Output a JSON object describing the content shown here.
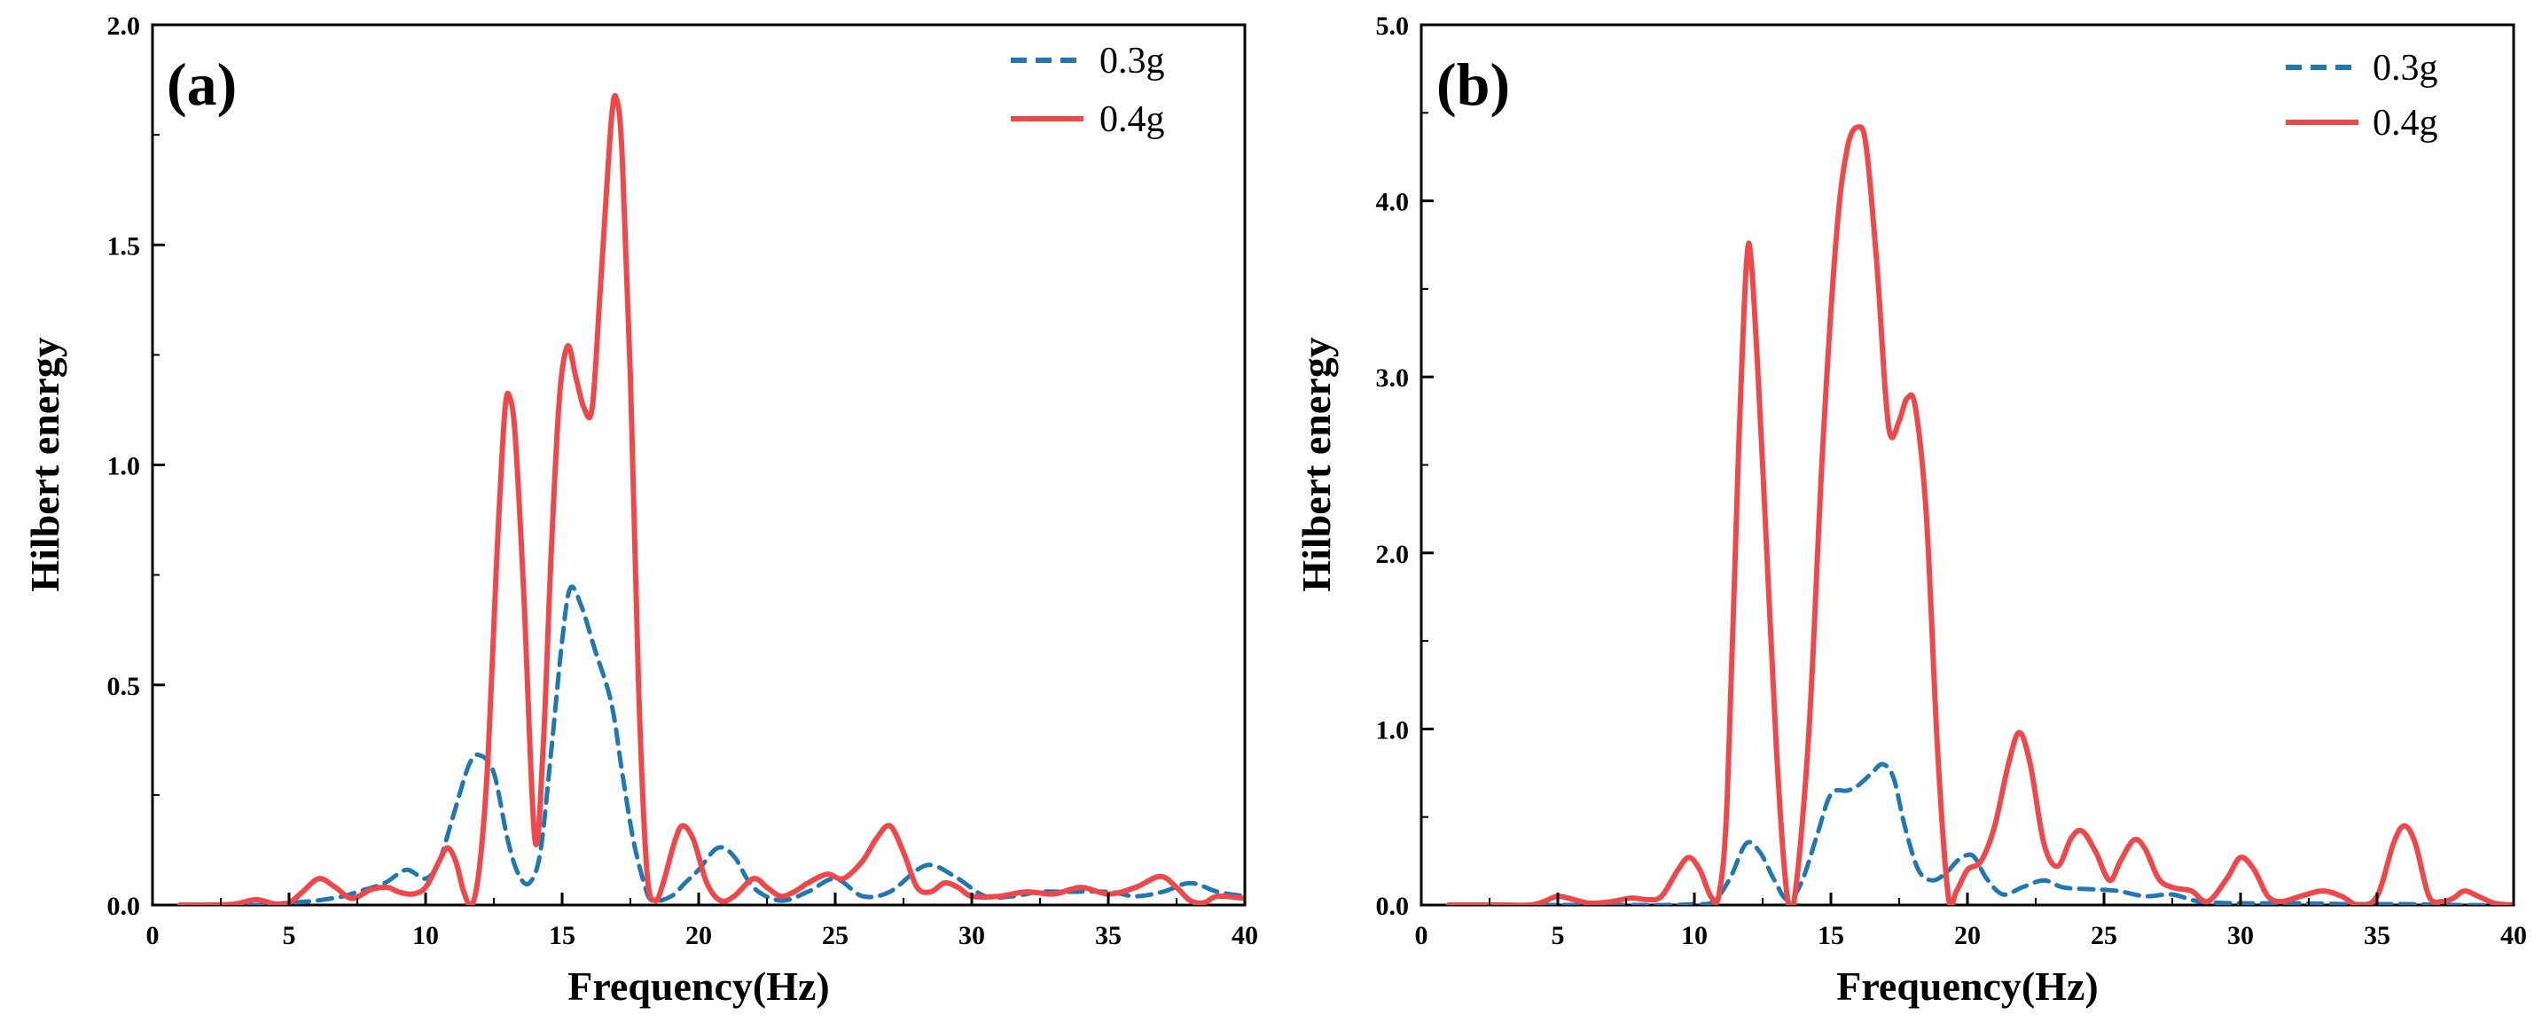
{
  "colors": {
    "series_0_3g": "#1f77b4",
    "series_0_4g": "#f0484a",
    "axis": "#000000"
  },
  "chart_data": [
    {
      "type": "line",
      "panel_label": "(a)",
      "xlabel": "Frequency(Hz)",
      "ylabel": "Hilbert energy",
      "xlim": [
        0,
        40
      ],
      "ylim": [
        0,
        2.0
      ],
      "xticks": [
        0,
        5,
        10,
        15,
        20,
        25,
        30,
        35,
        40
      ],
      "xtick_labels": [
        "0",
        "5",
        "10",
        "15",
        "20",
        "25",
        "30",
        "35",
        "40"
      ],
      "yticks": [
        0,
        0.5,
        1.0,
        1.5,
        2.0
      ],
      "ytick_labels": [
        "0.0",
        "0.5",
        "1.0",
        "1.5",
        "2.0"
      ],
      "legend_position": "top-right",
      "series": [
        {
          "name": "0.3g",
          "style": "dashed",
          "color": "#1f77b4",
          "points": [
            [
              1,
              0
            ],
            [
              2,
              0
            ],
            [
              3,
              0
            ],
            [
              4,
              0
            ],
            [
              5,
              0.005
            ],
            [
              6,
              0.01
            ],
            [
              7,
              0.02
            ],
            [
              7.5,
              0.03
            ],
            [
              8.5,
              0.05
            ],
            [
              9.3,
              0.08
            ],
            [
              10,
              0.06
            ],
            [
              10.5,
              0.1
            ],
            [
              11,
              0.2
            ],
            [
              11.6,
              0.32
            ],
            [
              12,
              0.34
            ],
            [
              12.5,
              0.3
            ],
            [
              13,
              0.15
            ],
            [
              13.4,
              0.07
            ],
            [
              13.8,
              0.05
            ],
            [
              14.2,
              0.12
            ],
            [
              14.6,
              0.35
            ],
            [
              15,
              0.6
            ],
            [
              15.3,
              0.72
            ],
            [
              15.7,
              0.68
            ],
            [
              16.2,
              0.58
            ],
            [
              16.8,
              0.46
            ],
            [
              17.2,
              0.3
            ],
            [
              17.6,
              0.15
            ],
            [
              18,
              0.05
            ],
            [
              18.3,
              0.01
            ],
            [
              19,
              0.02
            ],
            [
              19.5,
              0.05
            ],
            [
              20,
              0.08
            ],
            [
              20.7,
              0.13
            ],
            [
              21.3,
              0.11
            ],
            [
              22,
              0.04
            ],
            [
              23,
              0.01
            ],
            [
              24,
              0.03
            ],
            [
              25,
              0.06
            ],
            [
              26,
              0.02
            ],
            [
              27,
              0.03
            ],
            [
              28,
              0.08
            ],
            [
              28.6,
              0.09
            ],
            [
              29.5,
              0.06
            ],
            [
              30.5,
              0.02
            ],
            [
              31.5,
              0.02
            ],
            [
              32.5,
              0.03
            ],
            [
              33.5,
              0.03
            ],
            [
              35,
              0.03
            ],
            [
              36,
              0.02
            ],
            [
              37,
              0.03
            ],
            [
              38,
              0.05
            ],
            [
              39,
              0.03
            ],
            [
              40,
              0.02
            ]
          ]
        },
        {
          "name": "0.4g",
          "style": "solid",
          "color": "#f0484a",
          "points": [
            [
              1,
              0
            ],
            [
              2,
              0
            ],
            [
              3,
              0.002
            ],
            [
              3.8,
              0.012
            ],
            [
              4.5,
              0.002
            ],
            [
              5,
              0.005
            ],
            [
              5.5,
              0.03
            ],
            [
              6.1,
              0.06
            ],
            [
              6.7,
              0.04
            ],
            [
              7.3,
              0.015
            ],
            [
              8,
              0.035
            ],
            [
              8.6,
              0.04
            ],
            [
              9,
              0.03
            ],
            [
              9.5,
              0.025
            ],
            [
              10,
              0.04
            ],
            [
              10.5,
              0.1
            ],
            [
              10.8,
              0.13
            ],
            [
              11.1,
              0.1
            ],
            [
              11.4,
              0.03
            ],
            [
              11.7,
              0
            ],
            [
              12,
              0.1
            ],
            [
              12.3,
              0.35
            ],
            [
              12.6,
              0.78
            ],
            [
              12.9,
              1.12
            ],
            [
              13.1,
              1.15
            ],
            [
              13.3,
              1.05
            ],
            [
              13.6,
              0.7
            ],
            [
              14,
              0.15
            ],
            [
              14.3,
              0.35
            ],
            [
              14.6,
              0.8
            ],
            [
              14.9,
              1.15
            ],
            [
              15.2,
              1.27
            ],
            [
              15.5,
              1.2
            ],
            [
              15.8,
              1.13
            ],
            [
              16.1,
              1.13
            ],
            [
              16.4,
              1.4
            ],
            [
              16.8,
              1.78
            ],
            [
              17,
              1.83
            ],
            [
              17.2,
              1.7
            ],
            [
              17.5,
              1.2
            ],
            [
              17.8,
              0.5
            ],
            [
              18.1,
              0.08
            ],
            [
              18.4,
              0.01
            ],
            [
              18.7,
              0.05
            ],
            [
              19.1,
              0.14
            ],
            [
              19.4,
              0.18
            ],
            [
              19.8,
              0.15
            ],
            [
              20.3,
              0.05
            ],
            [
              20.8,
              0.01
            ],
            [
              21.3,
              0.02
            ],
            [
              22,
              0.06
            ],
            [
              22.5,
              0.04
            ],
            [
              23,
              0.02
            ],
            [
              23.5,
              0.03
            ],
            [
              24,
              0.05
            ],
            [
              24.7,
              0.07
            ],
            [
              25.3,
              0.06
            ],
            [
              26,
              0.1
            ],
            [
              26.5,
              0.15
            ],
            [
              27,
              0.18
            ],
            [
              27.5,
              0.12
            ],
            [
              28,
              0.04
            ],
            [
              28.5,
              0.03
            ],
            [
              29,
              0.05
            ],
            [
              29.5,
              0.04
            ],
            [
              30,
              0.02
            ],
            [
              31,
              0.02
            ],
            [
              32,
              0.03
            ],
            [
              33,
              0.025
            ],
            [
              34,
              0.04
            ],
            [
              35,
              0.025
            ],
            [
              36,
              0.04
            ],
            [
              36.9,
              0.065
            ],
            [
              37.5,
              0.04
            ],
            [
              38,
              0.01
            ],
            [
              38.5,
              0.005
            ],
            [
              39,
              0.02
            ],
            [
              40,
              0.015
            ]
          ]
        }
      ]
    },
    {
      "type": "line",
      "panel_label": "(b)",
      "xlabel": "Frequency(Hz)",
      "ylabel": "Hilbert energy",
      "xlim": [
        0,
        40
      ],
      "ylim": [
        0,
        5.0
      ],
      "xticks": [
        0,
        5,
        10,
        15,
        20,
        25,
        30,
        35,
        40
      ],
      "xtick_labels": [
        "0",
        "5",
        "10",
        "15",
        "20",
        "25",
        "30",
        "35",
        "40"
      ],
      "yticks": [
        0,
        1.0,
        2.0,
        3.0,
        4.0,
        5.0
      ],
      "ytick_labels": [
        "0.0",
        "1.0",
        "2.0",
        "3.0",
        "4.0",
        "5.0"
      ],
      "legend_position": "top-right",
      "series": [
        {
          "name": "0.3g",
          "style": "dashed",
          "color": "#1f77b4",
          "points": [
            [
              1,
              0
            ],
            [
              3,
              0
            ],
            [
              5,
              0
            ],
            [
              7,
              0
            ],
            [
              9,
              0
            ],
            [
              10,
              0.005
            ],
            [
              10.7,
              0.02
            ],
            [
              11.3,
              0.15
            ],
            [
              11.9,
              0.35
            ],
            [
              12.4,
              0.3
            ],
            [
              12.9,
              0.15
            ],
            [
              13.4,
              0.03
            ],
            [
              13.9,
              0.12
            ],
            [
              14.5,
              0.4
            ],
            [
              15,
              0.63
            ],
            [
              15.6,
              0.65
            ],
            [
              16,
              0.68
            ],
            [
              16.5,
              0.75
            ],
            [
              16.9,
              0.8
            ],
            [
              17.3,
              0.72
            ],
            [
              17.7,
              0.45
            ],
            [
              18.2,
              0.2
            ],
            [
              18.7,
              0.14
            ],
            [
              19.2,
              0.18
            ],
            [
              19.7,
              0.26
            ],
            [
              20.2,
              0.28
            ],
            [
              20.7,
              0.15
            ],
            [
              21.3,
              0.06
            ],
            [
              22,
              0.1
            ],
            [
              22.8,
              0.14
            ],
            [
              23.5,
              0.1
            ],
            [
              24.5,
              0.09
            ],
            [
              25.5,
              0.08
            ],
            [
              26.5,
              0.05
            ],
            [
              27.5,
              0.06
            ],
            [
              28.5,
              0.02
            ],
            [
              30,
              0.01
            ],
            [
              32,
              0.01
            ],
            [
              34,
              0.005
            ],
            [
              36,
              0.005
            ],
            [
              38,
              0
            ],
            [
              40,
              0
            ]
          ]
        },
        {
          "name": "0.4g",
          "style": "solid",
          "color": "#f0484a",
          "points": [
            [
              1,
              0
            ],
            [
              2,
              0
            ],
            [
              3,
              0
            ],
            [
              4,
              0
            ],
            [
              4.5,
              0.02
            ],
            [
              5,
              0.05
            ],
            [
              5.6,
              0.03
            ],
            [
              6.2,
              0.01
            ],
            [
              7,
              0.02
            ],
            [
              7.7,
              0.04
            ],
            [
              8.3,
              0.03
            ],
            [
              8.8,
              0.05
            ],
            [
              9.4,
              0.2
            ],
            [
              9.8,
              0.27
            ],
            [
              10.2,
              0.2
            ],
            [
              10.6,
              0.05
            ],
            [
              10.9,
              0.06
            ],
            [
              11.2,
              0.6
            ],
            [
              11.6,
              2.5
            ],
            [
              11.9,
              3.62
            ],
            [
              12.1,
              3.62
            ],
            [
              12.5,
              2.5
            ],
            [
              13,
              0.9
            ],
            [
              13.4,
              0.05
            ],
            [
              13.7,
              0.08
            ],
            [
              14.2,
              1.0
            ],
            [
              14.7,
              2.6
            ],
            [
              15.2,
              3.8
            ],
            [
              15.6,
              4.3
            ],
            [
              16,
              4.42
            ],
            [
              16.3,
              4.3
            ],
            [
              16.7,
              3.6
            ],
            [
              17,
              2.9
            ],
            [
              17.2,
              2.66
            ],
            [
              17.5,
              2.75
            ],
            [
              17.8,
              2.88
            ],
            [
              18.1,
              2.82
            ],
            [
              18.5,
              2.2
            ],
            [
              18.9,
              0.9
            ],
            [
              19.3,
              0.05
            ],
            [
              19.6,
              0.08
            ],
            [
              20,
              0.2
            ],
            [
              20.5,
              0.25
            ],
            [
              21,
              0.45
            ],
            [
              21.5,
              0.8
            ],
            [
              21.9,
              0.98
            ],
            [
              22.3,
              0.8
            ],
            [
              22.8,
              0.35
            ],
            [
              23.3,
              0.22
            ],
            [
              23.8,
              0.38
            ],
            [
              24.2,
              0.42
            ],
            [
              24.7,
              0.3
            ],
            [
              25.2,
              0.14
            ],
            [
              25.6,
              0.25
            ],
            [
              26.1,
              0.37
            ],
            [
              26.5,
              0.32
            ],
            [
              27,
              0.15
            ],
            [
              27.5,
              0.1
            ],
            [
              28.2,
              0.08
            ],
            [
              28.8,
              0.02
            ],
            [
              29.5,
              0.15
            ],
            [
              30,
              0.27
            ],
            [
              30.5,
              0.2
            ],
            [
              31,
              0.05
            ],
            [
              31.5,
              0.02
            ],
            [
              32.2,
              0.05
            ],
            [
              33,
              0.08
            ],
            [
              33.7,
              0.05
            ],
            [
              34.3,
              0
            ],
            [
              35,
              0.05
            ],
            [
              35.6,
              0.35
            ],
            [
              36,
              0.45
            ],
            [
              36.4,
              0.35
            ],
            [
              36.9,
              0.05
            ],
            [
              37.4,
              0.02
            ],
            [
              37.8,
              0.04
            ],
            [
              38.2,
              0.08
            ],
            [
              38.7,
              0.05
            ],
            [
              39.3,
              0.01
            ],
            [
              40,
              0
            ]
          ]
        }
      ]
    }
  ]
}
